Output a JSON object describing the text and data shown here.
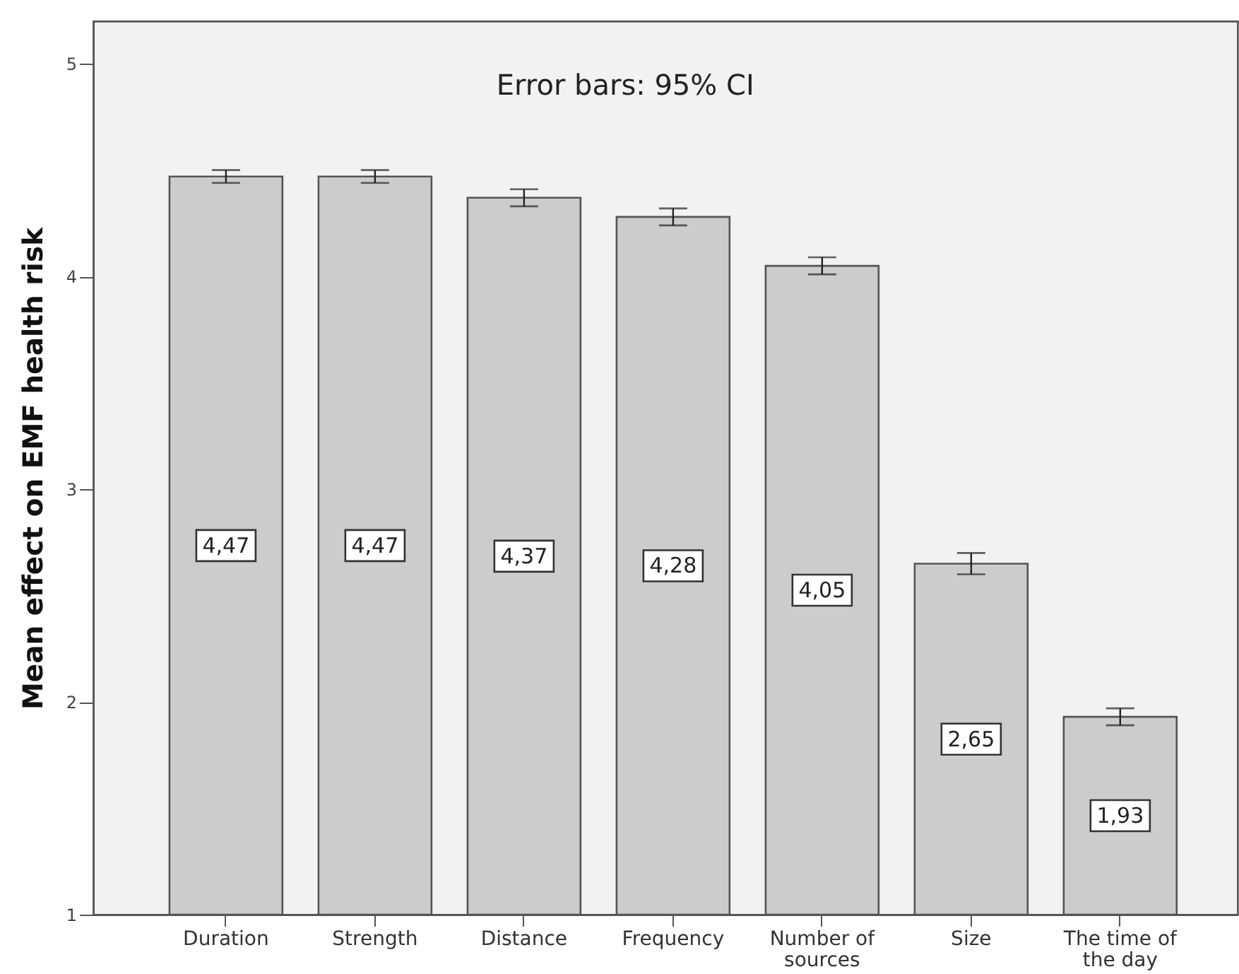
{
  "chart_data": {
    "type": "bar",
    "categories": [
      "Duration",
      "Strength",
      "Distance",
      "Frequency",
      "Number of sources",
      "Size",
      "The time of the day"
    ],
    "values": [
      4.47,
      4.47,
      4.37,
      4.28,
      4.05,
      2.65,
      1.93
    ],
    "errors": [
      0.03,
      0.03,
      0.04,
      0.04,
      0.04,
      0.05,
      0.04
    ],
    "value_labels": [
      "4,47",
      "4,47",
      "4,37",
      "4,28",
      "4,05",
      "2,65",
      "1,93"
    ],
    "color": "#cccccc",
    "ylabel": "Mean effect on EMF health risk",
    "ylim": [
      1,
      5.2
    ],
    "yticks": [
      1,
      2,
      3,
      4,
      5
    ],
    "annotations": [
      "Error bars: 95% CI"
    ]
  }
}
